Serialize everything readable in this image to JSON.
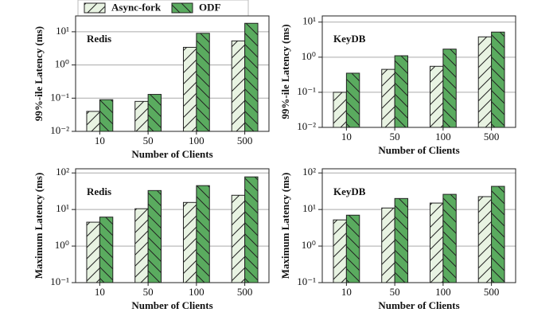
{
  "chart_data": [
    {
      "type": "bar",
      "title": "Redis",
      "ylabel": "99%-ile Latency (ms)",
      "xlabel": "Number of Clients",
      "log_y": true,
      "grid": true,
      "categories": [
        "10",
        "50",
        "100",
        "500"
      ],
      "ylim": [
        0.01,
        30
      ],
      "yticks": [
        {
          "value": 0.01,
          "label": "10⁻²"
        },
        {
          "value": 0.1,
          "label": "10⁻¹"
        },
        {
          "value": 1,
          "label": "10⁰"
        },
        {
          "value": 10,
          "label": "10¹"
        }
      ],
      "series": [
        {
          "name": "Async-fork",
          "color": "#e8f3e2",
          "hatch": "/",
          "values": [
            0.04,
            0.08,
            3.4,
            5.3
          ]
        },
        {
          "name": "ODF",
          "color": "#5aab5f",
          "hatch": "\\",
          "values": [
            0.09,
            0.13,
            9,
            18
          ]
        }
      ]
    },
    {
      "type": "bar",
      "title": "KeyDB",
      "ylabel": "99%-ile Latency (ms)",
      "xlabel": "Number of Clients",
      "log_y": true,
      "grid": true,
      "categories": [
        "10",
        "50",
        "100",
        "500"
      ],
      "ylim": [
        0.01,
        15
      ],
      "yticks": [
        {
          "value": 0.01,
          "label": "10⁻²"
        },
        {
          "value": 0.1,
          "label": "10⁻¹"
        },
        {
          "value": 1,
          "label": "10⁰"
        },
        {
          "value": 10,
          "label": "10¹"
        }
      ],
      "series": [
        {
          "color": "#e8f3e2",
          "hatch": "/",
          "values": [
            0.1,
            0.45,
            0.55,
            3.8
          ]
        },
        {
          "color": "#5aab5f",
          "hatch": "\\",
          "values": [
            0.35,
            1.1,
            1.7,
            5.2
          ]
        }
      ]
    },
    {
      "type": "bar",
      "title": "Redis",
      "ylabel": "Maximum Latency (ms)",
      "xlabel": "Number of Clients",
      "log_y": true,
      "grid": true,
      "categories": [
        "10",
        "50",
        "100",
        "500"
      ],
      "ylim": [
        0.1,
        130
      ],
      "yticks": [
        {
          "value": 0.1,
          "label": "10⁻¹"
        },
        {
          "value": 1,
          "label": "10⁰"
        },
        {
          "value": 10,
          "label": "10¹"
        },
        {
          "value": 100,
          "label": "10²"
        }
      ],
      "series": [
        {
          "color": "#e8f3e2",
          "hatch": "/",
          "values": [
            4.5,
            10.5,
            15.6,
            24.5
          ]
        },
        {
          "color": "#5aab5f",
          "hatch": "\\",
          "values": [
            6.2,
            33,
            45,
            78
          ]
        }
      ]
    },
    {
      "type": "bar",
      "title": "KeyDB",
      "ylabel": "Maximum Latency (ms)",
      "xlabel": "Number of Clients",
      "log_y": true,
      "grid": true,
      "categories": [
        "10",
        "50",
        "100",
        "500"
      ],
      "ylim": [
        0.1,
        130
      ],
      "yticks": [
        {
          "value": 0.1,
          "label": "10⁻¹"
        },
        {
          "value": 1,
          "label": "10⁰"
        },
        {
          "value": 10,
          "label": "10¹"
        },
        {
          "value": 100,
          "label": "10²"
        }
      ],
      "series": [
        {
          "color": "#e8f3e2",
          "hatch": "/",
          "values": [
            5.2,
            11,
            15,
            22.5
          ]
        },
        {
          "color": "#5aab5f",
          "hatch": "\\",
          "values": [
            7,
            20,
            26,
            43
          ]
        }
      ]
    }
  ]
}
